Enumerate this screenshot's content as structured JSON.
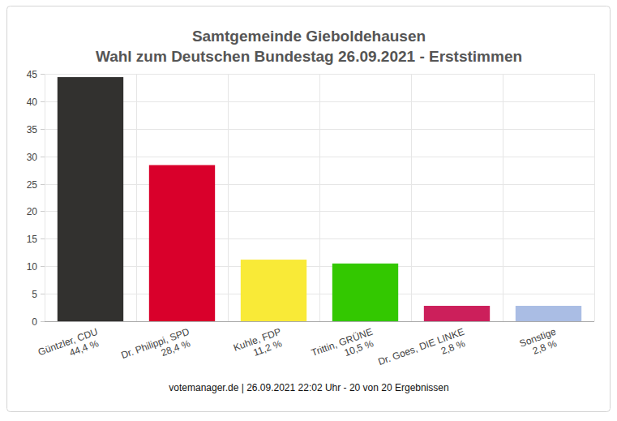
{
  "chart_data": {
    "type": "bar",
    "title": "Samtgemeinde Gieboldehausen",
    "subtitle": "Wahl zum Deutschen Bundestag 26.09.2021  - Erststimmen",
    "footer": "votemanager.de | 26.09.2021 22:02 Uhr - 20 von 20 Ergebnissen",
    "categories": [
      "Güntzler, CDU",
      "Dr. Philippi, SPD",
      "Kuhle, FDP",
      "Trittin, GRÜNE",
      "Dr. Goes, DIE LINKE",
      "Sonstige"
    ],
    "values": [
      44.4,
      28.4,
      11.2,
      10.5,
      2.8,
      2.8
    ],
    "value_labels": [
      "44,4 %",
      "28,4 %",
      "11,2 %",
      "10,5 %",
      "2,8 %",
      "2,8 %"
    ],
    "data_labels": true,
    "colors": [
      "#32312f",
      "#d9002b",
      "#f9ea37",
      "#33c800",
      "#cc1f5b",
      "#aabde4"
    ],
    "ylim": [
      0,
      45
    ],
    "yticks": [
      0,
      5,
      10,
      15,
      20,
      25,
      30,
      35,
      40,
      45
    ],
    "grid": true
  }
}
